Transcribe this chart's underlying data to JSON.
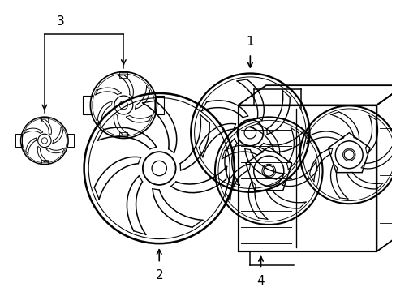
{
  "background_color": "#ffffff",
  "line_color": "#000000",
  "line_width": 1.2,
  "label_fontsize": 11,
  "fig_width": 4.89,
  "fig_height": 3.6,
  "dpi": 100
}
